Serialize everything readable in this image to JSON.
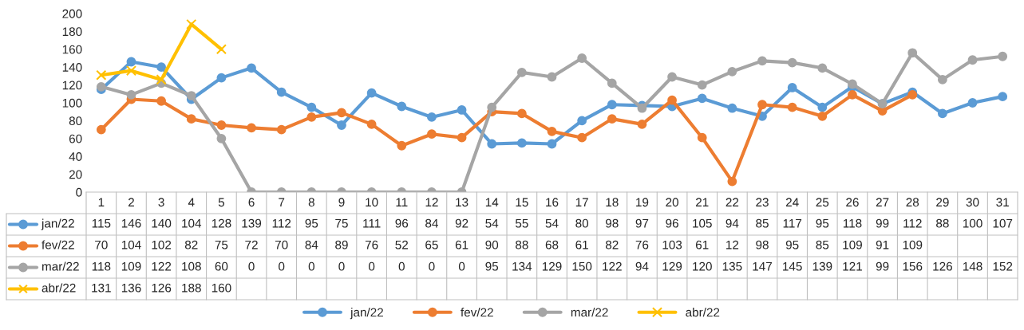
{
  "chart_data": {
    "type": "line",
    "categories": [
      "1",
      "2",
      "3",
      "4",
      "5",
      "6",
      "7",
      "8",
      "9",
      "10",
      "11",
      "12",
      "13",
      "14",
      "15",
      "16",
      "17",
      "18",
      "19",
      "20",
      "21",
      "22",
      "23",
      "24",
      "25",
      "26",
      "27",
      "28",
      "29",
      "30",
      "31"
    ],
    "series": [
      {
        "name": "jan/22",
        "color": "#5b9bd5",
        "marker": "circle",
        "values": [
          115,
          146,
          140,
          104,
          128,
          139,
          112,
          95,
          75,
          111,
          96,
          84,
          92,
          54,
          55,
          54,
          80,
          98,
          97,
          96,
          105,
          94,
          85,
          117,
          95,
          118,
          99,
          112,
          88,
          100,
          107
        ]
      },
      {
        "name": "fev/22",
        "color": "#ed7d31",
        "marker": "circle",
        "values": [
          70,
          104,
          102,
          82,
          75,
          72,
          70,
          84,
          89,
          76,
          52,
          65,
          61,
          90,
          88,
          68,
          61,
          82,
          76,
          103,
          61,
          12,
          98,
          95,
          85,
          109,
          91,
          109,
          null,
          null,
          null
        ]
      },
      {
        "name": "mar/22",
        "color": "#a5a5a5",
        "marker": "circle",
        "values": [
          118,
          109,
          122,
          108,
          60,
          0,
          0,
          0,
          0,
          0,
          0,
          0,
          0,
          95,
          134,
          129,
          150,
          122,
          94,
          129,
          120,
          135,
          147,
          145,
          139,
          121,
          99,
          156,
          126,
          148,
          152
        ]
      },
      {
        "name": "abr/22",
        "color": "#ffc000",
        "marker": "cross",
        "values": [
          131,
          136,
          126,
          188,
          160,
          null,
          null,
          null,
          null,
          null,
          null,
          null,
          null,
          null,
          null,
          null,
          null,
          null,
          null,
          null,
          null,
          null,
          null,
          null,
          null,
          null,
          null,
          null,
          null,
          null,
          null
        ]
      }
    ],
    "ylim": [
      0,
      200
    ],
    "yticks": [
      0,
      20,
      40,
      60,
      80,
      100,
      120,
      140,
      160,
      180,
      200
    ],
    "grid": false,
    "legend": "bottom",
    "data_labels": true,
    "line_style": "solid"
  }
}
